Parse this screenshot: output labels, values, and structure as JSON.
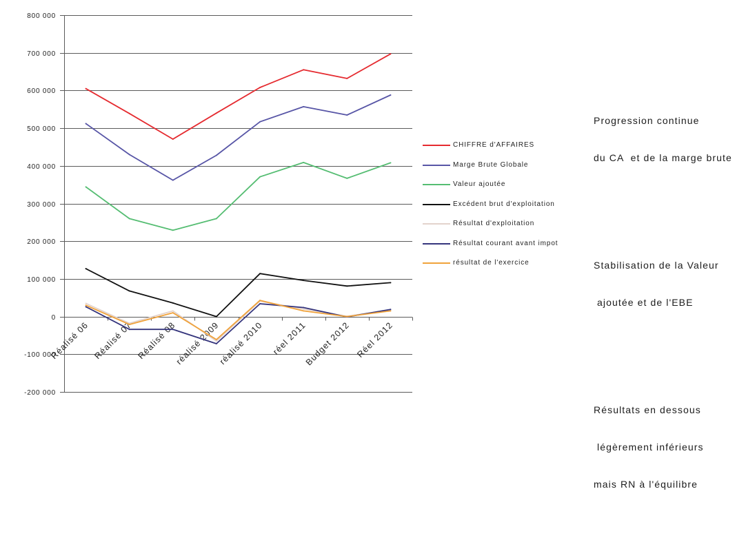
{
  "chart_data": {
    "type": "line",
    "categories": [
      "Réalisé 06",
      "Réalisé 07",
      "Réalisé 08",
      "réalisé 2009",
      "réalisé 2010",
      "réel 2011",
      "Budget 2012",
      "Réel 2012"
    ],
    "ylim": [
      -200000,
      800000
    ],
    "yticks": [
      800000,
      700000,
      600000,
      500000,
      400000,
      300000,
      200000,
      100000,
      0,
      -100000,
      -200000
    ],
    "ytick_labels": [
      "800 000",
      "700 000",
      "600 000",
      "500 000",
      "400 000",
      "300 000",
      "200 000",
      "100 000",
      "0",
      "-100 000",
      "-200 000"
    ],
    "grid": true,
    "legend": "right",
    "series": [
      {
        "name": "CHIFFRE d'AFFAIRES",
        "color": "#e52a2f",
        "values": [
          605000,
          539000,
          471000,
          540000,
          608000,
          655000,
          632000,
          697000
        ]
      },
      {
        "name": "Marge Brute Globale",
        "color": "#5755a6",
        "values": [
          512000,
          430000,
          362000,
          428000,
          517000,
          557000,
          535000,
          588000
        ]
      },
      {
        "name": "Valeur ajoutée",
        "color": "#55bd72",
        "values": [
          344000,
          260000,
          229000,
          260000,
          371000,
          409000,
          367000,
          408000
        ]
      },
      {
        "name": "Excédent brut d'exploitation",
        "color": "#111111",
        "values": [
          127000,
          68000,
          36000,
          0,
          114000,
          96000,
          81000,
          90000
        ]
      },
      {
        "name": "Résultat d'exploitation",
        "color": "#e3d3cc",
        "values": [
          35000,
          -18000,
          15000,
          -65000,
          41000,
          20000,
          1000,
          17000
        ]
      },
      {
        "name": "Résultat courant avant impot",
        "color": "#34347c",
        "values": [
          26000,
          -34000,
          -34000,
          -72000,
          34000,
          24000,
          -1000,
          19000
        ]
      },
      {
        "name": "résultat de l'exercice",
        "color": "#f0a23a",
        "values": [
          30000,
          -21000,
          10000,
          -61000,
          43000,
          15000,
          0,
          15000
        ]
      }
    ]
  },
  "notes": [
    {
      "lines": [
        "Progression continue",
        "du CA  et de la marge brute"
      ]
    },
    {
      "lines": [
        "Stabilisation de la Valeur",
        " ajoutée et de l'EBE"
      ]
    },
    {
      "lines": [
        "Résultats en dessous",
        " légèrement inférieurs",
        "mais RN à l'équilibre"
      ]
    }
  ]
}
